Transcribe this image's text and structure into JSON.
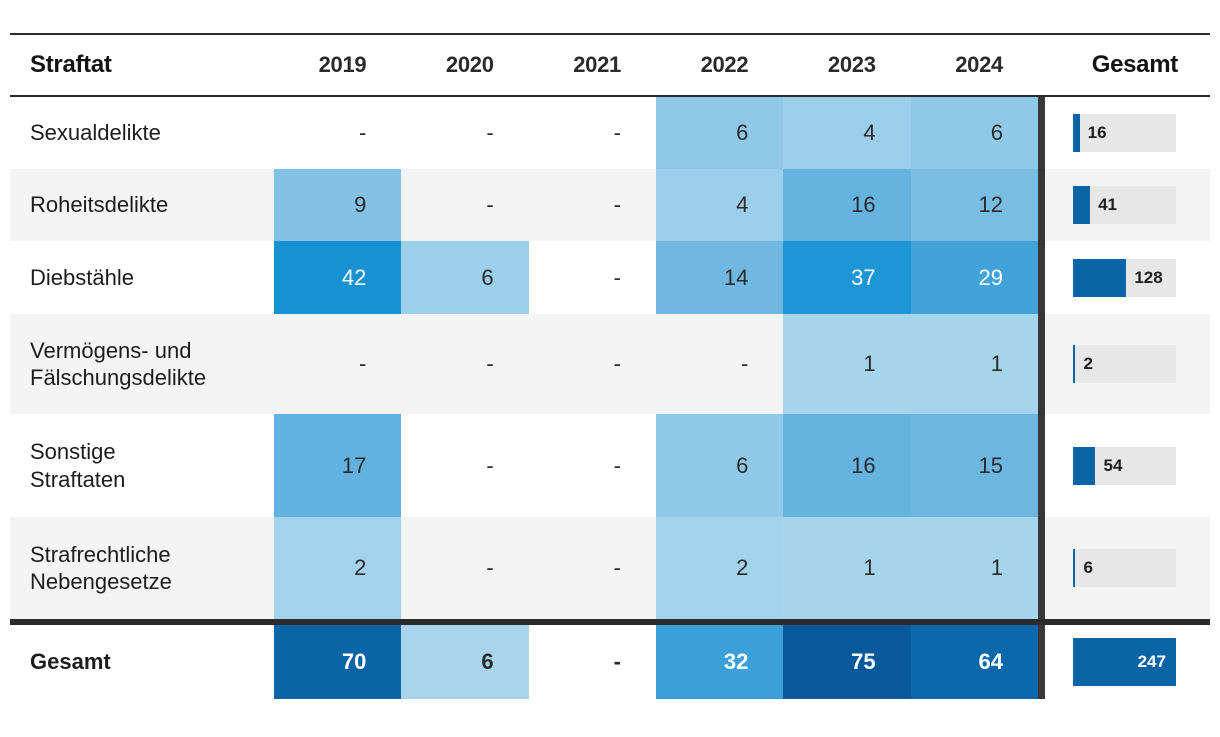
{
  "table": {
    "header": [
      "Straftat",
      "2019",
      "2020",
      "2021",
      "2022",
      "2023",
      "2024",
      "Gesamt"
    ],
    "rows": [
      {
        "label": "Sexualdelikte",
        "cells": [
          {
            "v": "-"
          },
          {
            "v": "-"
          },
          {
            "v": "-"
          },
          {
            "v": "6",
            "bg": "#90c9e8"
          },
          {
            "v": "4",
            "bg": "#9aceea"
          },
          {
            "v": "6",
            "bg": "#90c9e8"
          }
        ],
        "total": 16
      },
      {
        "label": "Roheitsdelikte",
        "cells": [
          {
            "v": "9",
            "bg": "#83c2e5"
          },
          {
            "v": "-"
          },
          {
            "v": "-"
          },
          {
            "v": "4",
            "bg": "#9aceea"
          },
          {
            "v": "16",
            "bg": "#67b3df"
          },
          {
            "v": "12",
            "bg": "#79bde3"
          }
        ],
        "total": 41
      },
      {
        "label": "Diebstähle",
        "cells": [
          {
            "v": "42",
            "bg": "#1791d2",
            "fg": "#ffffff"
          },
          {
            "v": "6",
            "bg": "#9ccfea"
          },
          {
            "v": "-"
          },
          {
            "v": "14",
            "bg": "#70b8e1"
          },
          {
            "v": "37",
            "bg": "#1e95d5",
            "fg": "#ffffff"
          },
          {
            "v": "29",
            "bg": "#42a3da",
            "fg": "#ffffff"
          }
        ],
        "total": 128
      },
      {
        "label": "Vermögens- und\nFälschungsdelikte",
        "cells": [
          {
            "v": "-"
          },
          {
            "v": "-"
          },
          {
            "v": "-"
          },
          {
            "v": "-"
          },
          {
            "v": "1",
            "bg": "#a7d4ed"
          },
          {
            "v": "1",
            "bg": "#a7d4ed"
          }
        ],
        "total": 2
      },
      {
        "label": "Sonstige\nStraftaten",
        "cells": [
          {
            "v": "17",
            "bg": "#63b1de"
          },
          {
            "v": "-"
          },
          {
            "v": "-"
          },
          {
            "v": "6",
            "bg": "#90c9e8"
          },
          {
            "v": "16",
            "bg": "#67b3df"
          },
          {
            "v": "15",
            "bg": "#6cb6e0"
          }
        ],
        "total": 54
      },
      {
        "label": "Strafrechtliche\nNebengesetze",
        "cells": [
          {
            "v": "2",
            "bg": "#a3d2ec"
          },
          {
            "v": "-"
          },
          {
            "v": "-"
          },
          {
            "v": "2",
            "bg": "#a3d2ec"
          },
          {
            "v": "1",
            "bg": "#a7d4ed"
          },
          {
            "v": "1",
            "bg": "#a7d4ed"
          }
        ],
        "total": 6
      }
    ],
    "total_row": {
      "label": "Gesamt",
      "cells": [
        {
          "v": "70",
          "bg": "#0a64a5",
          "fg": "#ffffff"
        },
        {
          "v": "6",
          "bg": "#a8d4ed"
        },
        {
          "v": "-"
        },
        {
          "v": "32",
          "bg": "#3ba0d9",
          "fg": "#ffffff"
        },
        {
          "v": "75",
          "bg": "#08599b",
          "fg": "#ffffff"
        },
        {
          "v": "64",
          "bg": "#0b69ab",
          "fg": "#ffffff"
        }
      ],
      "total": 247
    },
    "grand_total": 247
  },
  "colors": {
    "bar_blue": "#0b64a6",
    "track_grey": "#e7e7e7",
    "zebra_grey": "#f4f4f4",
    "rule_dark": "#2b2b2b",
    "divider_dark": "#383838",
    "heat_min": "#a8d5ee",
    "heat_max": "#08599b"
  },
  "chart_data": {
    "type": "heatmap",
    "title": "",
    "rows": [
      "Sexualdelikte",
      "Roheitsdelikte",
      "Diebstähle",
      "Vermögens- und Fälschungsdelikte",
      "Sonstige Straftaten",
      "Strafrechtliche Nebengesetze",
      "Gesamt"
    ],
    "columns": [
      "2019",
      "2020",
      "2021",
      "2022",
      "2023",
      "2024",
      "Gesamt"
    ],
    "values": [
      [
        null,
        null,
        null,
        6,
        4,
        6,
        16
      ],
      [
        9,
        null,
        null,
        4,
        16,
        12,
        41
      ],
      [
        42,
        6,
        null,
        14,
        37,
        29,
        128
      ],
      [
        null,
        null,
        null,
        null,
        1,
        1,
        2
      ],
      [
        17,
        null,
        null,
        6,
        16,
        15,
        54
      ],
      [
        2,
        null,
        null,
        2,
        1,
        1,
        6
      ],
      [
        70,
        6,
        null,
        32,
        75,
        64,
        247
      ]
    ],
    "legend_position": "none",
    "color_scale": [
      "#a8d5ee",
      "#08599b"
    ],
    "notes": "Gesamt column rendered as grey-track bar chart scaled to max 247; null shown as '-'"
  }
}
